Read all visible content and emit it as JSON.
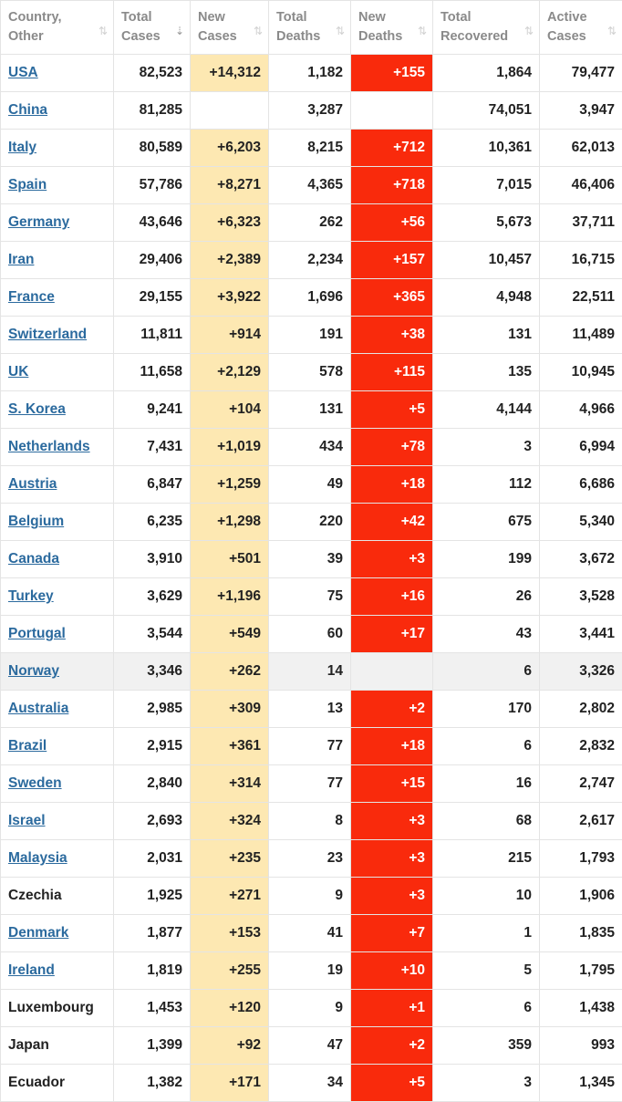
{
  "headers": [
    {
      "l1": "Country,",
      "l2": "Other",
      "sort": "⇅",
      "active": false
    },
    {
      "l1": "Total",
      "l2": "Cases",
      "sort": "⇣",
      "active": true
    },
    {
      "l1": "New",
      "l2": "Cases",
      "sort": "⇅",
      "active": false
    },
    {
      "l1": "Total",
      "l2": "Deaths",
      "sort": "⇅",
      "active": false
    },
    {
      "l1": "New",
      "l2": "Deaths",
      "sort": "⇅",
      "active": false
    },
    {
      "l1": "Total",
      "l2": "Recovered",
      "sort": "⇅",
      "active": false
    },
    {
      "l1": "Active",
      "l2": "Cases",
      "sort": "⇅",
      "active": false
    }
  ],
  "colors": {
    "link": "#2b6a9e",
    "new_cases_bg": "#fde8b2",
    "new_deaths_bg": "#f92a0c"
  },
  "rows": [
    {
      "country": "USA",
      "link": true,
      "total_cases": "82,523",
      "new_cases": "+14,312",
      "total_deaths": "1,182",
      "new_deaths": "+155",
      "total_recovered": "1,864",
      "active_cases": "79,477"
    },
    {
      "country": "China",
      "link": true,
      "total_cases": "81,285",
      "new_cases": "",
      "total_deaths": "3,287",
      "new_deaths": "",
      "total_recovered": "74,051",
      "active_cases": "3,947"
    },
    {
      "country": "Italy",
      "link": true,
      "total_cases": "80,589",
      "new_cases": "+6,203",
      "total_deaths": "8,215",
      "new_deaths": "+712",
      "total_recovered": "10,361",
      "active_cases": "62,013"
    },
    {
      "country": "Spain",
      "link": true,
      "total_cases": "57,786",
      "new_cases": "+8,271",
      "total_deaths": "4,365",
      "new_deaths": "+718",
      "total_recovered": "7,015",
      "active_cases": "46,406"
    },
    {
      "country": "Germany",
      "link": true,
      "total_cases": "43,646",
      "new_cases": "+6,323",
      "total_deaths": "262",
      "new_deaths": "+56",
      "total_recovered": "5,673",
      "active_cases": "37,711"
    },
    {
      "country": "Iran",
      "link": true,
      "total_cases": "29,406",
      "new_cases": "+2,389",
      "total_deaths": "2,234",
      "new_deaths": "+157",
      "total_recovered": "10,457",
      "active_cases": "16,715"
    },
    {
      "country": "France",
      "link": true,
      "total_cases": "29,155",
      "new_cases": "+3,922",
      "total_deaths": "1,696",
      "new_deaths": "+365",
      "total_recovered": "4,948",
      "active_cases": "22,511"
    },
    {
      "country": "Switzerland",
      "link": true,
      "total_cases": "11,811",
      "new_cases": "+914",
      "total_deaths": "191",
      "new_deaths": "+38",
      "total_recovered": "131",
      "active_cases": "11,489"
    },
    {
      "country": "UK",
      "link": true,
      "total_cases": "11,658",
      "new_cases": "+2,129",
      "total_deaths": "578",
      "new_deaths": "+115",
      "total_recovered": "135",
      "active_cases": "10,945"
    },
    {
      "country": "S. Korea",
      "link": true,
      "total_cases": "9,241",
      "new_cases": "+104",
      "total_deaths": "131",
      "new_deaths": "+5",
      "total_recovered": "4,144",
      "active_cases": "4,966"
    },
    {
      "country": "Netherlands",
      "link": true,
      "total_cases": "7,431",
      "new_cases": "+1,019",
      "total_deaths": "434",
      "new_deaths": "+78",
      "total_recovered": "3",
      "active_cases": "6,994"
    },
    {
      "country": "Austria",
      "link": true,
      "total_cases": "6,847",
      "new_cases": "+1,259",
      "total_deaths": "49",
      "new_deaths": "+18",
      "total_recovered": "112",
      "active_cases": "6,686"
    },
    {
      "country": "Belgium",
      "link": true,
      "total_cases": "6,235",
      "new_cases": "+1,298",
      "total_deaths": "220",
      "new_deaths": "+42",
      "total_recovered": "675",
      "active_cases": "5,340"
    },
    {
      "country": "Canada",
      "link": true,
      "total_cases": "3,910",
      "new_cases": "+501",
      "total_deaths": "39",
      "new_deaths": "+3",
      "total_recovered": "199",
      "active_cases": "3,672"
    },
    {
      "country": "Turkey",
      "link": true,
      "total_cases": "3,629",
      "new_cases": "+1,196",
      "total_deaths": "75",
      "new_deaths": "+16",
      "total_recovered": "26",
      "active_cases": "3,528"
    },
    {
      "country": "Portugal",
      "link": true,
      "total_cases": "3,544",
      "new_cases": "+549",
      "total_deaths": "60",
      "new_deaths": "+17",
      "total_recovered": "43",
      "active_cases": "3,441"
    },
    {
      "country": "Norway",
      "link": true,
      "alt": true,
      "total_cases": "3,346",
      "new_cases": "+262",
      "total_deaths": "14",
      "new_deaths": "",
      "total_recovered": "6",
      "active_cases": "3,326"
    },
    {
      "country": "Australia",
      "link": true,
      "total_cases": "2,985",
      "new_cases": "+309",
      "total_deaths": "13",
      "new_deaths": "+2",
      "total_recovered": "170",
      "active_cases": "2,802"
    },
    {
      "country": "Brazil",
      "link": true,
      "total_cases": "2,915",
      "new_cases": "+361",
      "total_deaths": "77",
      "new_deaths": "+18",
      "total_recovered": "6",
      "active_cases": "2,832"
    },
    {
      "country": "Sweden",
      "link": true,
      "total_cases": "2,840",
      "new_cases": "+314",
      "total_deaths": "77",
      "new_deaths": "+15",
      "total_recovered": "16",
      "active_cases": "2,747"
    },
    {
      "country": "Israel",
      "link": true,
      "total_cases": "2,693",
      "new_cases": "+324",
      "total_deaths": "8",
      "new_deaths": "+3",
      "total_recovered": "68",
      "active_cases": "2,617"
    },
    {
      "country": "Malaysia",
      "link": true,
      "total_cases": "2,031",
      "new_cases": "+235",
      "total_deaths": "23",
      "new_deaths": "+3",
      "total_recovered": "215",
      "active_cases": "1,793"
    },
    {
      "country": "Czechia",
      "link": false,
      "total_cases": "1,925",
      "new_cases": "+271",
      "total_deaths": "9",
      "new_deaths": "+3",
      "total_recovered": "10",
      "active_cases": "1,906"
    },
    {
      "country": "Denmark",
      "link": true,
      "total_cases": "1,877",
      "new_cases": "+153",
      "total_deaths": "41",
      "new_deaths": "+7",
      "total_recovered": "1",
      "active_cases": "1,835"
    },
    {
      "country": "Ireland",
      "link": true,
      "total_cases": "1,819",
      "new_cases": "+255",
      "total_deaths": "19",
      "new_deaths": "+10",
      "total_recovered": "5",
      "active_cases": "1,795"
    },
    {
      "country": "Luxembourg",
      "link": false,
      "total_cases": "1,453",
      "new_cases": "+120",
      "total_deaths": "9",
      "new_deaths": "+1",
      "total_recovered": "6",
      "active_cases": "1,438"
    },
    {
      "country": "Japan",
      "link": false,
      "total_cases": "1,399",
      "new_cases": "+92",
      "total_deaths": "47",
      "new_deaths": "+2",
      "total_recovered": "359",
      "active_cases": "993"
    },
    {
      "country": "Ecuador",
      "link": false,
      "total_cases": "1,382",
      "new_cases": "+171",
      "total_deaths": "34",
      "new_deaths": "+5",
      "total_recovered": "3",
      "active_cases": "1,345"
    }
  ]
}
